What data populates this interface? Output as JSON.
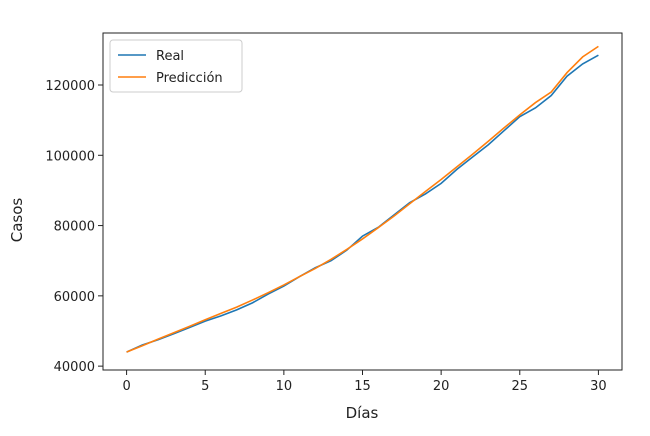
{
  "chart_data": {
    "type": "line",
    "x_label": "Días",
    "y_label": "Casos",
    "x": [
      0,
      1,
      2,
      3,
      4,
      5,
      6,
      7,
      8,
      9,
      10,
      11,
      12,
      13,
      14,
      15,
      16,
      17,
      18,
      19,
      20,
      21,
      22,
      23,
      24,
      25,
      26,
      27,
      28,
      29,
      30
    ],
    "series": [
      {
        "name": "Real",
        "color": "#1f77b4",
        "values": [
          44000,
          46000,
          47500,
          49200,
          51000,
          52800,
          54300,
          56000,
          58000,
          60500,
          62800,
          65500,
          68000,
          70000,
          73000,
          77000,
          79500,
          83000,
          86500,
          89000,
          92000,
          96000,
          99500,
          103000,
          107000,
          111000,
          113500,
          117000,
          122500,
          126000,
          128500
        ]
      },
      {
        "name": "Predicción",
        "color": "#ff7f0e",
        "values": [
          44000,
          45800,
          47700,
          49500,
          51300,
          53200,
          55000,
          56800,
          58800,
          60900,
          63100,
          65500,
          67800,
          70400,
          73200,
          76200,
          79400,
          82700,
          86200,
          89700,
          93100,
          96700,
          100300,
          104000,
          107800,
          111500,
          115000,
          118000,
          123500,
          128000,
          131000
        ]
      }
    ],
    "xlim": [
      -1.5,
      31.5
    ],
    "xticks": [
      0,
      5,
      10,
      15,
      20,
      25,
      30
    ],
    "ylim": [
      38900,
      134800
    ],
    "yticks": [
      40000,
      60000,
      80000,
      100000,
      120000
    ],
    "legend": "upper-left"
  }
}
